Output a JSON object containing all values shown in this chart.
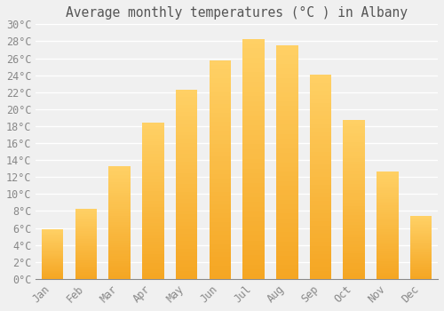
{
  "title": "Average monthly temperatures (°C ) in Albany",
  "months": [
    "Jan",
    "Feb",
    "Mar",
    "Apr",
    "May",
    "Jun",
    "Jul",
    "Aug",
    "Sep",
    "Oct",
    "Nov",
    "Dec"
  ],
  "values": [
    5.9,
    8.3,
    13.3,
    18.4,
    22.3,
    25.7,
    28.3,
    27.5,
    24.1,
    18.7,
    12.7,
    7.4
  ],
  "bar_color_bottom": "#F5A623",
  "bar_color_top": "#FFD166",
  "background_color": "#F0F0F0",
  "plot_bg_color": "#F0F0F0",
  "grid_color": "#FFFFFF",
  "text_color": "#888888",
  "title_color": "#555555",
  "ylim": [
    0,
    30
  ],
  "yticks": [
    0,
    2,
    4,
    6,
    8,
    10,
    12,
    14,
    16,
    18,
    20,
    22,
    24,
    26,
    28,
    30
  ],
  "title_fontsize": 10.5,
  "tick_fontsize": 8.5,
  "title_font": "monospace",
  "tick_font": "monospace",
  "bar_width": 0.65
}
